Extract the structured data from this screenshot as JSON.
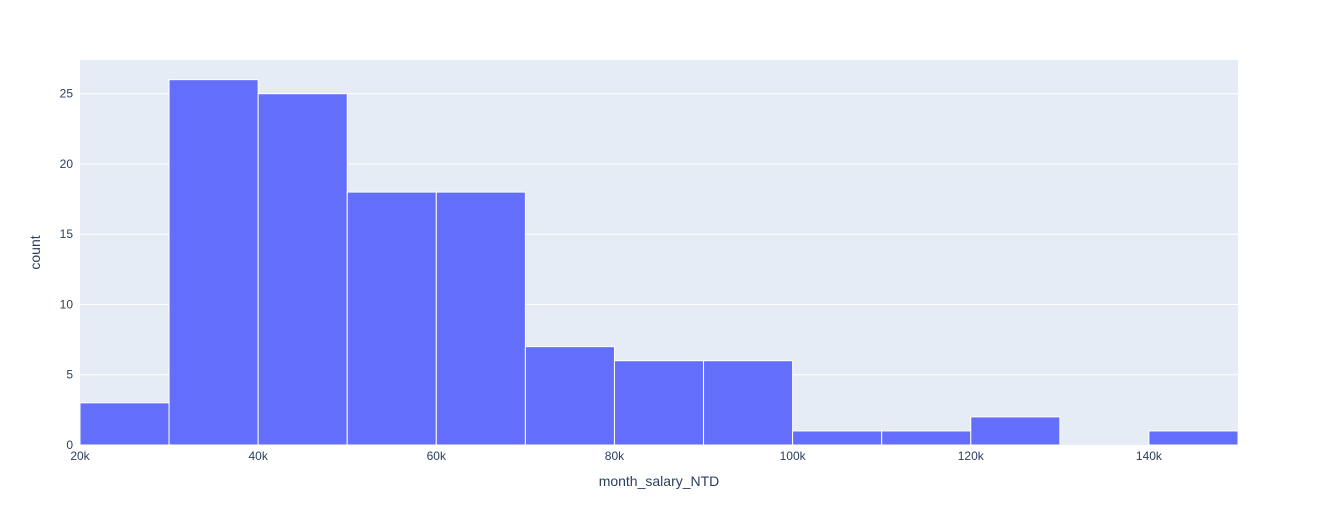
{
  "chart_data": {
    "type": "bar",
    "subtype": "histogram",
    "xlabel": "month_salary_NTD",
    "ylabel": "count",
    "bin_edges": [
      20000,
      30000,
      40000,
      50000,
      60000,
      70000,
      80000,
      90000,
      100000,
      110000,
      120000,
      130000,
      140000,
      150000
    ],
    "values": [
      3,
      26,
      25,
      18,
      18,
      7,
      6,
      6,
      1,
      1,
      2,
      0,
      1
    ],
    "xlim": [
      20000,
      150000
    ],
    "ylim": [
      0,
      27.4
    ],
    "x_ticks": [
      {
        "value": 20000,
        "label": "20k"
      },
      {
        "value": 40000,
        "label": "40k"
      },
      {
        "value": 60000,
        "label": "60k"
      },
      {
        "value": 80000,
        "label": "80k"
      },
      {
        "value": 100000,
        "label": "100k"
      },
      {
        "value": 120000,
        "label": "120k"
      },
      {
        "value": 140000,
        "label": "140k"
      }
    ],
    "y_ticks": [
      {
        "value": 0,
        "label": "0"
      },
      {
        "value": 5,
        "label": "5"
      },
      {
        "value": 10,
        "label": "10"
      },
      {
        "value": 15,
        "label": "15"
      },
      {
        "value": 20,
        "label": "20"
      },
      {
        "value": 25,
        "label": "25"
      }
    ],
    "grid": true,
    "colors": {
      "bar": "#636efa",
      "plot_background": "#e5ecf6",
      "grid": "#ffffff",
      "text": "#2a3f5f"
    }
  }
}
